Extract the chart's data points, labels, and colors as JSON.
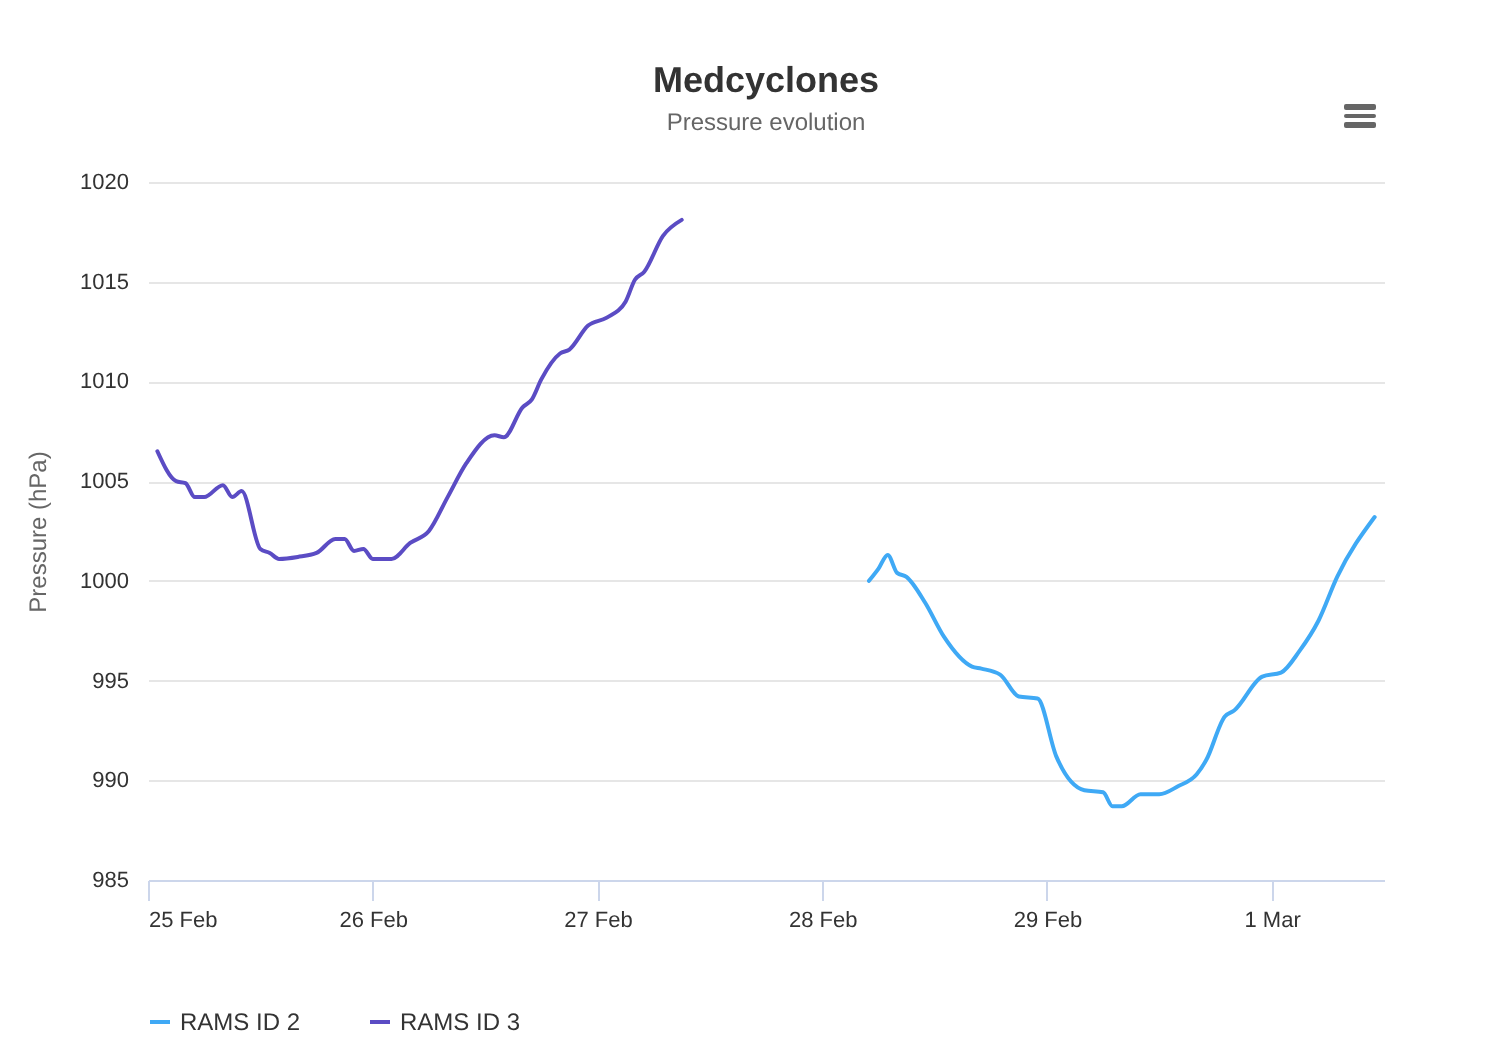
{
  "chart_data": {
    "type": "line",
    "title": "Medcyclones",
    "subtitle": "Pressure evolution",
    "ylabel": "Pressure (hPa)",
    "xlim": [
      "--02-25",
      "--03-01T12:00"
    ],
    "xticks": [
      {
        "value": "--02-25",
        "label": "25 Feb"
      },
      {
        "value": "--02-26",
        "label": "26 Feb"
      },
      {
        "value": "--02-27",
        "label": "27 Feb"
      },
      {
        "value": "--02-28",
        "label": "28 Feb"
      },
      {
        "value": "--02-29",
        "label": "29 Feb"
      },
      {
        "value": "--03-01",
        "label": "1 Mar"
      }
    ],
    "ylim": [
      985,
      1020
    ],
    "yticks": [
      985,
      990,
      995,
      1000,
      1005,
      1010,
      1015,
      1020
    ],
    "grid": "y",
    "legend": "bottom",
    "marker": "none",
    "line_style": "solid",
    "series": [
      {
        "name": "RAMS ID 2",
        "color": "#3fa9f5",
        "x": [
          "--02-28T05:00",
          "--02-28T06:00",
          "--02-28T07:00",
          "--02-28T08:00",
          "--02-28T09:00",
          "--02-28T11:00",
          "--02-28T13:00",
          "--02-28T16:00",
          "--02-28T17:00",
          "--02-28T19:00",
          "--02-28T21:00",
          "--02-28T23:00",
          "--02-29T01:00",
          "--02-29T04:00",
          "--02-29T06:00",
          "--02-29T07:00",
          "--02-29T08:00",
          "--02-29T10:00",
          "--02-29T12:00",
          "--02-29T14:00",
          "--02-29T16:00",
          "--02-29T17:00",
          "--02-29T19:00",
          "--02-29T20:00",
          "--02-29T23:00",
          "--03-01T01:00",
          "--03-01T03:00",
          "--03-01T05:00",
          "--03-01T07:00",
          "--03-01T11:00"
        ],
        "values": [
          1000.0,
          1000.6,
          1001.3,
          1000.4,
          1000.2,
          998.9,
          997.2,
          995.7,
          995.6,
          995.3,
          994.2,
          994.1,
          991.2,
          989.5,
          989.4,
          988.7,
          988.7,
          989.3,
          989.3,
          989.7,
          990.3,
          991.0,
          993.2,
          993.5,
          995.2,
          995.4,
          996.5,
          998.0,
          1000.2,
          1003.2
        ]
      },
      {
        "name": "RAMS ID 3",
        "color": "#5b4cc4",
        "x": [
          "--02-25T01:00",
          "--02-25T03:00",
          "--02-25T04:00",
          "--02-25T05:00",
          "--02-25T06:00",
          "--02-25T08:00",
          "--02-25T09:00",
          "--02-25T10:00",
          "--02-25T12:00",
          "--02-25T13:00",
          "--02-25T14:00",
          "--02-25T16:00",
          "--02-25T18:00",
          "--02-25T20:00",
          "--02-25T21:00",
          "--02-25T22:00",
          "--02-25T23:00",
          "--02-26T00:00",
          "--02-26T02:00",
          "--02-26T04:00",
          "--02-26T06:00",
          "--02-26T08:00",
          "--02-26T10:00",
          "--02-26T13:00",
          "--02-26T14:00",
          "--02-26T16:00",
          "--02-26T17:00",
          "--02-26T18:00",
          "--02-26T20:00",
          "--02-26T21:00",
          "--02-26T23:00",
          "--02-27T01:00",
          "--02-27T03:00",
          "--02-27T04:00",
          "--02-27T05:00",
          "--02-27T07:00",
          "--02-27T09:00"
        ],
        "values": [
          1006.5,
          1005.0,
          1004.9,
          1004.2,
          1004.2,
          1004.8,
          1004.2,
          1004.5,
          1001.6,
          1001.4,
          1001.1,
          1001.2,
          1001.4,
          1002.1,
          1002.1,
          1001.5,
          1001.6,
          1001.1,
          1001.1,
          1001.9,
          1002.5,
          1004.2,
          1005.9,
          1007.3,
          1007.2,
          1008.7,
          1009.1,
          1010.1,
          1011.4,
          1011.6,
          1012.8,
          1013.2,
          1014.0,
          1015.1,
          1015.5,
          1017.3,
          1018.1
        ]
      }
    ]
  }
}
